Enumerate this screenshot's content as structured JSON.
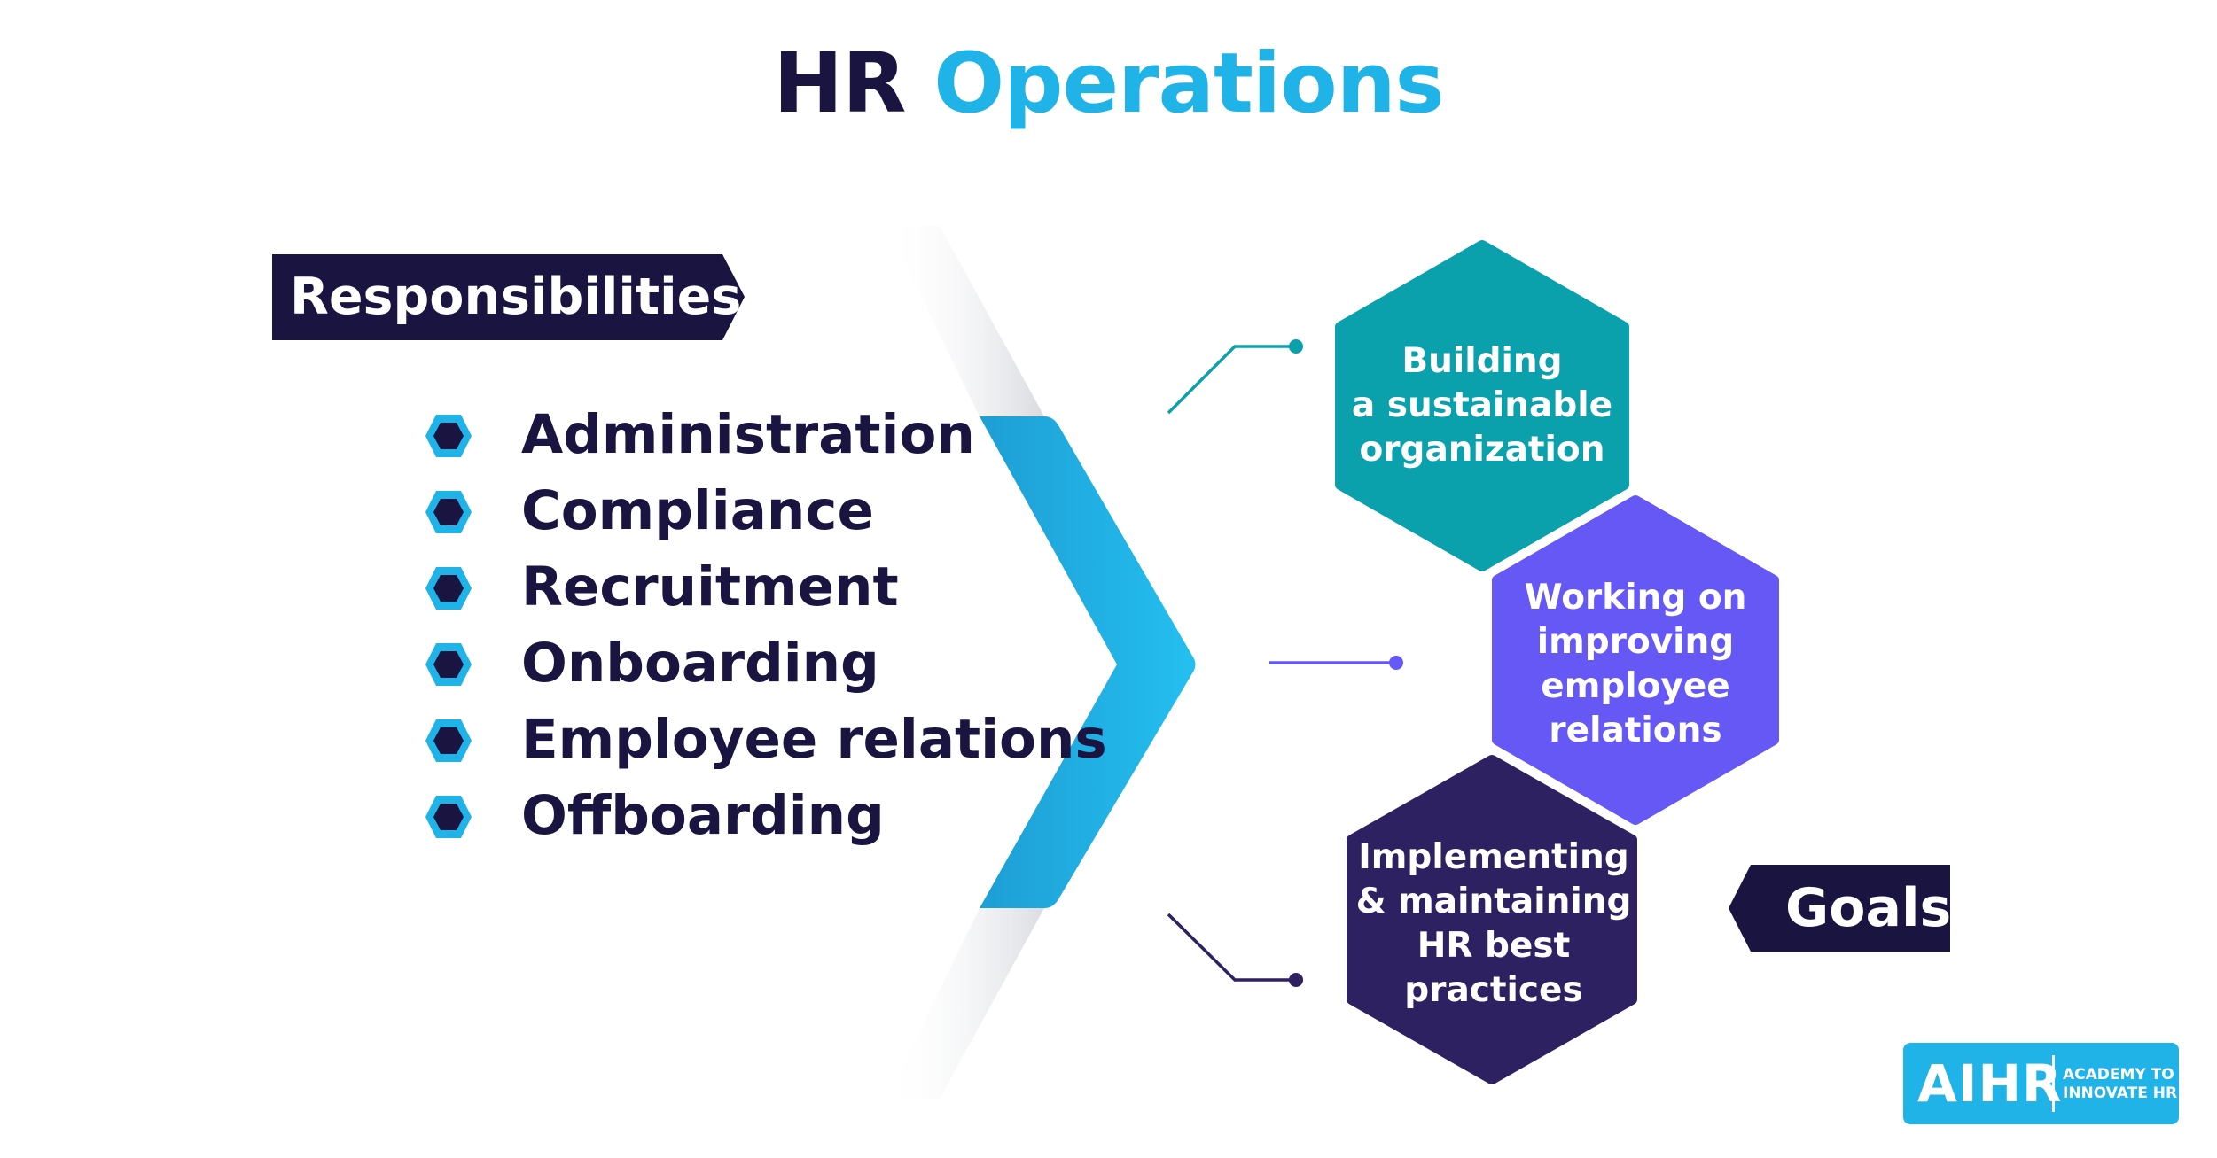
{
  "title": {
    "part1": "HR",
    "part2": "Operations"
  },
  "responsibilities": {
    "heading": "Responsibilities",
    "items": [
      "Administration",
      "Compliance",
      "Recruitment",
      "Onboarding",
      "Employee relations",
      "Offboarding"
    ]
  },
  "goals": {
    "heading": "Goals",
    "items": [
      {
        "lines": [
          "Building",
          "a sustainable",
          "organization"
        ],
        "color": "#0aa0ac"
      },
      {
        "lines": [
          "Working on",
          "improving",
          "employee",
          "relations"
        ],
        "color": "#6558f5"
      },
      {
        "lines": [
          "Implementing",
          "& maintaining",
          "HR best",
          "practices"
        ],
        "color": "#2e2162"
      }
    ]
  },
  "logo": {
    "brand": "AIHR",
    "tagline_line1": "ACADEMY TO",
    "tagline_line2": "INNOVATE HR"
  },
  "colors": {
    "navy": "#1a1440",
    "cyan": "#1fb3e8",
    "teal": "#0aa0ac",
    "violet": "#6558f5",
    "purple": "#2e2162"
  }
}
